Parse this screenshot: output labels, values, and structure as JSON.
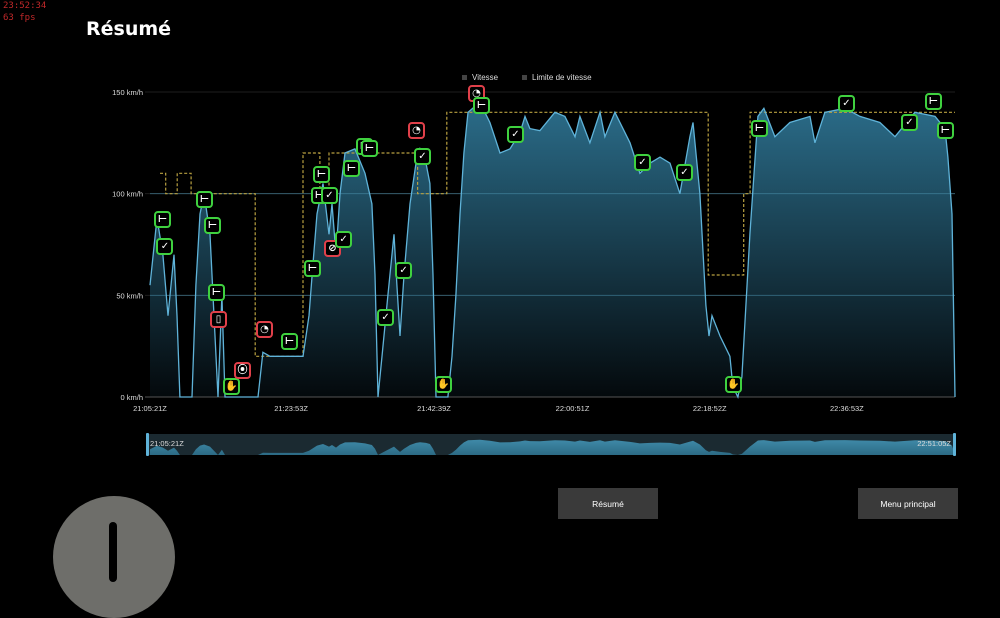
{
  "debug": {
    "clock": "23:52:34",
    "fps": "63 fps"
  },
  "title": "Résumé",
  "legend": [
    {
      "label": "Vitesse",
      "color": "#5fb3d9"
    },
    {
      "label": "Limite de vitesse",
      "color": "#b8a040"
    }
  ],
  "buttons": {
    "summary": "Résumé",
    "main_menu": "Menu principal"
  },
  "icons": {
    "alert": "exclamation-circle-icon"
  },
  "chart_data": {
    "type": "area",
    "x_type": "time",
    "xlim": [
      "21:05:21Z",
      "22:51:05Z"
    ],
    "ylim": [
      0,
      150
    ],
    "y_ticks": [
      {
        "value": 0,
        "label": "0 km/h"
      },
      {
        "value": 50,
        "label": "50 km/h"
      },
      {
        "value": 100,
        "label": "100 km/h"
      },
      {
        "value": 150,
        "label": "150 km/h"
      }
    ],
    "x_ticks": [
      "21:05:21Z",
      "21:23:53Z",
      "21:42:39Z",
      "22:00:51Z",
      "22:18:52Z",
      "22:36:53Z"
    ],
    "navigator": {
      "start_label": "21:05:21Z",
      "end_label": "22:51:05Z"
    },
    "colors": {
      "speed_line": "#5fb3d9",
      "speed_fill_top": "#2b6d8a",
      "limit": "#b8a040",
      "marker_ok": "#3fd13f",
      "marker_bad": "#e0404a"
    },
    "series": [
      {
        "name": "Vitesse",
        "points": [
          [
            "21:05:21",
            55
          ],
          [
            "21:06:16",
            88
          ],
          [
            "21:07:03",
            70
          ],
          [
            "21:07:43",
            40
          ],
          [
            "21:08:30",
            70
          ],
          [
            "21:08:54",
            40
          ],
          [
            "21:09:17",
            0
          ],
          [
            "21:10:52",
            0
          ],
          [
            "21:11:23",
            55
          ],
          [
            "21:11:55",
            90
          ],
          [
            "21:12:27",
            100
          ],
          [
            "21:13:14",
            80
          ],
          [
            "21:14:01",
            20
          ],
          [
            "21:14:17",
            0
          ],
          [
            "21:14:48",
            50
          ],
          [
            "21:15:12",
            0
          ],
          [
            "21:19:32",
            0
          ],
          [
            "21:20:11",
            22
          ],
          [
            "21:21:07",
            20
          ],
          [
            "21:25:27",
            20
          ],
          [
            "21:26:14",
            40
          ],
          [
            "21:26:45",
            65
          ],
          [
            "21:27:17",
            90
          ],
          [
            "21:28:04",
            105
          ],
          [
            "21:28:52",
            80
          ],
          [
            "21:29:15",
            95
          ],
          [
            "21:29:47",
            70
          ],
          [
            "21:30:18",
            100
          ],
          [
            "21:30:58",
            120
          ],
          [
            "21:32:16",
            122
          ],
          [
            "21:33:35",
            110
          ],
          [
            "21:34:30",
            95
          ],
          [
            "21:34:54",
            60
          ],
          [
            "21:35:18",
            0
          ],
          [
            "21:35:49",
            20
          ],
          [
            "21:36:36",
            50
          ],
          [
            "21:37:24",
            80
          ],
          [
            "21:37:47",
            55
          ],
          [
            "21:38:11",
            30
          ],
          [
            "21:38:43",
            60
          ],
          [
            "21:39:30",
            95
          ],
          [
            "21:40:17",
            115
          ],
          [
            "21:40:49",
            122
          ],
          [
            "21:41:36",
            115
          ],
          [
            "21:42:07",
            105
          ],
          [
            "21:42:31",
            60
          ],
          [
            "21:42:55",
            0
          ],
          [
            "21:44:29",
            0
          ],
          [
            "21:45:01",
            20
          ],
          [
            "21:45:32",
            50
          ],
          [
            "21:46:04",
            90
          ],
          [
            "21:46:35",
            120
          ],
          [
            "21:47:07",
            140
          ],
          [
            "21:48:41",
            145
          ],
          [
            "21:50:00",
            135
          ],
          [
            "21:51:19",
            120
          ],
          [
            "21:52:38",
            122
          ],
          [
            "21:53:57",
            130
          ],
          [
            "21:54:36",
            138
          ],
          [
            "21:55:15",
            132
          ],
          [
            "21:56:34",
            131
          ],
          [
            "21:58:32",
            140
          ],
          [
            "21:59:51",
            138
          ],
          [
            "22:01:10",
            128
          ],
          [
            "22:01:49",
            138
          ],
          [
            "22:03:08",
            125
          ],
          [
            "22:04:27",
            140
          ],
          [
            "22:05:06",
            128
          ],
          [
            "22:06:25",
            140
          ],
          [
            "22:08:24",
            125
          ],
          [
            "22:09:42",
            110
          ],
          [
            "22:11:01",
            115
          ],
          [
            "22:12:20",
            118
          ],
          [
            "22:13:39",
            115
          ],
          [
            "22:14:57",
            100
          ],
          [
            "22:16:16",
            128
          ],
          [
            "22:16:40",
            135
          ],
          [
            "22:17:35",
            100
          ],
          [
            "22:18:22",
            45
          ],
          [
            "22:18:46",
            30
          ],
          [
            "22:19:10",
            40
          ],
          [
            "22:20:13",
            30
          ],
          [
            "22:21:31",
            20
          ],
          [
            "22:21:55",
            5
          ],
          [
            "22:22:34",
            0
          ],
          [
            "22:23:06",
            10
          ],
          [
            "22:24:09",
            80
          ],
          [
            "22:25:12",
            138
          ],
          [
            "22:25:59",
            142
          ],
          [
            "22:27:26",
            128
          ],
          [
            "22:29:24",
            135
          ],
          [
            "22:32:02",
            138
          ],
          [
            "22:32:41",
            125
          ],
          [
            "22:34:00",
            140
          ],
          [
            "22:36:38",
            142
          ],
          [
            "22:38:36",
            138
          ],
          [
            "22:41:13",
            135
          ],
          [
            "22:43:12",
            128
          ],
          [
            "22:45:49",
            140
          ],
          [
            "22:48:27",
            138
          ],
          [
            "22:49:46",
            132
          ],
          [
            "22:50:09",
            118
          ],
          [
            "22:50:41",
            90
          ],
          [
            "22:51:05",
            0
          ]
        ]
      },
      {
        "name": "Limite de vitesse",
        "step": true,
        "points": [
          [
            "21:06:40",
            110
          ],
          [
            "21:07:25",
            100
          ],
          [
            "21:08:55",
            110
          ],
          [
            "21:10:45",
            100
          ],
          [
            "21:19:10",
            20
          ],
          [
            "21:25:27",
            120
          ],
          [
            "21:27:40",
            100
          ],
          [
            "21:28:52",
            120
          ],
          [
            "21:40:30",
            100
          ],
          [
            "21:44:20",
            140
          ],
          [
            "22:18:40",
            60
          ],
          [
            "22:23:20",
            100
          ],
          [
            "22:24:10",
            140
          ],
          [
            "22:51:05",
            140
          ]
        ]
      }
    ],
    "markers": [
      {
        "time": "21:07:03",
        "speed": 87,
        "icon": "horn-icon",
        "status": "ok"
      },
      {
        "time": "21:07:23",
        "speed": 74,
        "icon": "safe-driving-icon",
        "status": "ok"
      },
      {
        "time": "21:12:34",
        "speed": 97,
        "icon": "horn-icon",
        "status": "ok"
      },
      {
        "time": "21:13:37",
        "speed": 84,
        "icon": "horn-icon",
        "status": "ok"
      },
      {
        "time": "21:14:09",
        "speed": 51,
        "icon": "horn-icon",
        "status": "ok"
      },
      {
        "time": "21:14:25",
        "speed": 38,
        "icon": "phone-icon",
        "status": "bad"
      },
      {
        "time": "21:16:07",
        "speed": 5,
        "icon": "stop-hand-icon",
        "status": "ok"
      },
      {
        "time": "21:17:34",
        "speed": 13,
        "icon": "traffic-light-icon",
        "status": "bad"
      },
      {
        "time": "21:20:27",
        "speed": 33,
        "icon": "speedometer-icon",
        "status": "bad"
      },
      {
        "time": "21:23:44",
        "speed": 27,
        "icon": "horn-icon",
        "status": "ok"
      },
      {
        "time": "21:26:45",
        "speed": 63,
        "icon": "horn-icon",
        "status": "ok"
      },
      {
        "time": "21:27:40",
        "speed": 99,
        "icon": "horn-icon",
        "status": "ok"
      },
      {
        "time": "21:27:56",
        "speed": 109,
        "icon": "horn-icon",
        "status": "ok"
      },
      {
        "time": "21:28:59",
        "speed": 99,
        "icon": "safe-driving-icon",
        "status": "ok"
      },
      {
        "time": "21:29:23",
        "speed": 73,
        "icon": "no-horn-icon",
        "status": "bad"
      },
      {
        "time": "21:30:50",
        "speed": 77,
        "icon": "safe-driving-icon",
        "status": "ok"
      },
      {
        "time": "21:31:53",
        "speed": 112,
        "icon": "horn-icon",
        "status": "ok"
      },
      {
        "time": "21:33:35",
        "speed": 123,
        "icon": "horn-icon",
        "status": "ok"
      },
      {
        "time": "21:34:14",
        "speed": 122,
        "icon": "horn-icon",
        "status": "ok"
      },
      {
        "time": "21:36:21",
        "speed": 39,
        "icon": "safe-driving-icon",
        "status": "ok"
      },
      {
        "time": "21:38:43",
        "speed": 62,
        "icon": "safe-driving-icon",
        "status": "ok"
      },
      {
        "time": "21:40:25",
        "speed": 131,
        "icon": "speedometer-icon",
        "status": "bad"
      },
      {
        "time": "21:41:12",
        "speed": 118,
        "icon": "safe-driving-icon",
        "status": "ok"
      },
      {
        "time": "21:43:58",
        "speed": 6,
        "icon": "stop-hand-icon",
        "status": "ok"
      },
      {
        "time": "21:48:18",
        "speed": 149,
        "icon": "speedometer-icon",
        "status": "bad"
      },
      {
        "time": "21:48:57",
        "speed": 143,
        "icon": "horn-icon",
        "status": "ok"
      },
      {
        "time": "21:53:25",
        "speed": 129,
        "icon": "safe-driving-icon",
        "status": "ok"
      },
      {
        "time": "22:10:06",
        "speed": 115,
        "icon": "safe-driving-icon",
        "status": "ok"
      },
      {
        "time": "22:15:37",
        "speed": 110,
        "icon": "safe-driving-icon",
        "status": "ok"
      },
      {
        "time": "22:22:03",
        "speed": 6,
        "icon": "stop-hand-icon",
        "status": "ok"
      },
      {
        "time": "22:25:28",
        "speed": 132,
        "icon": "horn-icon",
        "status": "ok"
      },
      {
        "time": "22:36:54",
        "speed": 144,
        "icon": "safe-driving-icon",
        "status": "ok"
      },
      {
        "time": "22:45:10",
        "speed": 135,
        "icon": "safe-driving-icon",
        "status": "ok"
      },
      {
        "time": "22:48:18",
        "speed": 145,
        "icon": "horn-icon",
        "status": "ok"
      },
      {
        "time": "22:49:53",
        "speed": 131,
        "icon": "horn-icon",
        "status": "ok"
      }
    ]
  }
}
